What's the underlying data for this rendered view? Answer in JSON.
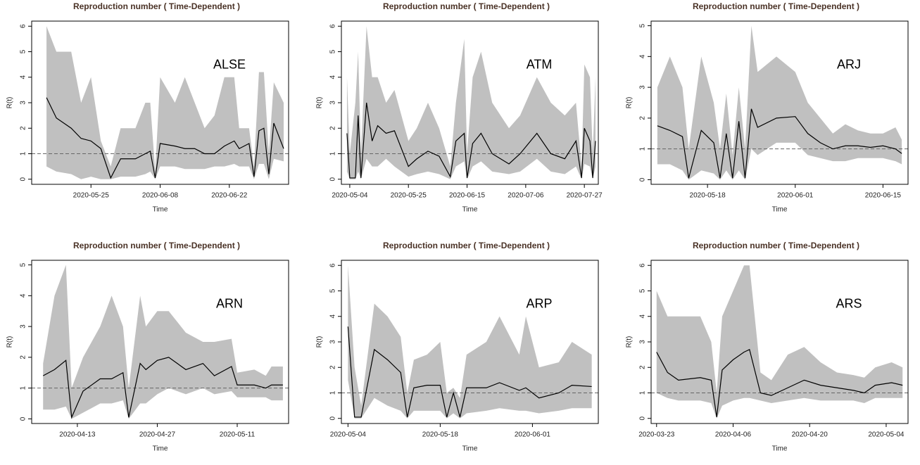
{
  "chart_data": [
    {
      "type": "line",
      "title": "Reproduction number ( Time-Dependent )",
      "annotation": "ALSE",
      "x_label": "Time",
      "y_label": "R(t)",
      "x": [
        "2020-05-16",
        "2020-05-18",
        "2020-05-21",
        "2020-05-23",
        "2020-05-25",
        "2020-05-27",
        "2020-05-29",
        "2020-05-31",
        "2020-06-03",
        "2020-06-05",
        "2020-06-06",
        "2020-06-07",
        "2020-06-08",
        "2020-06-11",
        "2020-06-13",
        "2020-06-15",
        "2020-06-17",
        "2020-06-19",
        "2020-06-21",
        "2020-06-23",
        "2020-06-24",
        "2020-06-26",
        "2020-06-27",
        "2020-06-28",
        "2020-06-29",
        "2020-06-30",
        "2020-07-01",
        "2020-07-03"
      ],
      "values": [
        3.2,
        2.4,
        2.0,
        1.6,
        1.5,
        1.2,
        0.05,
        0.8,
        0.8,
        1.0,
        1.1,
        0.05,
        1.4,
        1.3,
        1.2,
        1.2,
        1.0,
        1.0,
        1.3,
        1.5,
        1.2,
        1.4,
        0.1,
        1.9,
        2.0,
        0.2,
        2.2,
        1.2
      ],
      "lower": [
        0.5,
        0.3,
        0.2,
        0,
        0.1,
        0,
        0,
        0.1,
        0.1,
        0.2,
        0.3,
        0,
        0.5,
        0.5,
        0.4,
        0.4,
        0.4,
        0.5,
        0.5,
        0.6,
        0.5,
        0.5,
        0,
        0.6,
        0.6,
        0,
        0.8,
        0.7
      ],
      "upper": [
        6,
        5,
        5,
        3,
        4,
        1.5,
        0.5,
        2,
        2,
        3,
        3,
        0.3,
        4,
        3,
        4,
        3,
        2,
        2.5,
        4,
        4,
        2,
        2,
        0.5,
        4.2,
        4.2,
        1,
        3.8,
        3
      ],
      "xlim": [
        "2020-05-13",
        "2020-07-04"
      ],
      "xticks": [
        "2020-05-25",
        "2020-06-08",
        "2020-06-22"
      ],
      "ylim": [
        -0.2,
        6.2
      ],
      "yticks": [
        0,
        1,
        2,
        3,
        4,
        5,
        6
      ],
      "reference_line": 1,
      "color": "#000000",
      "band_color": "#c0c0c0"
    },
    {
      "type": "line",
      "title": "Reproduction number ( Time-Dependent )",
      "annotation": "ATM",
      "x_label": "Time",
      "y_label": "R(t)",
      "x": [
        "2020-05-03",
        "2020-05-04",
        "2020-05-06",
        "2020-05-07",
        "2020-05-08",
        "2020-05-10",
        "2020-05-12",
        "2020-05-14",
        "2020-05-17",
        "2020-05-20",
        "2020-05-25",
        "2020-05-28",
        "2020-06-01",
        "2020-06-05",
        "2020-06-09",
        "2020-06-11",
        "2020-06-14",
        "2020-06-15",
        "2020-06-17",
        "2020-06-20",
        "2020-06-24",
        "2020-06-30",
        "2020-07-04",
        "2020-07-10",
        "2020-07-15",
        "2020-07-20",
        "2020-07-24",
        "2020-07-26",
        "2020-07-27",
        "2020-07-29",
        "2020-07-30",
        "2020-07-31"
      ],
      "values": [
        1.8,
        0.05,
        0.05,
        2.5,
        0.05,
        3.0,
        1.5,
        2.1,
        1.8,
        1.9,
        0.5,
        0.8,
        1.1,
        0.9,
        0.1,
        1.5,
        1.8,
        0.05,
        1.4,
        1.8,
        1.0,
        0.6,
        1.0,
        1.8,
        1.0,
        0.8,
        1.5,
        0.05,
        2.0,
        1.5,
        0.05,
        1.5
      ],
      "lower": [
        0.3,
        0,
        0,
        0.3,
        0,
        0.8,
        0.5,
        0.5,
        0.8,
        0.5,
        0.1,
        0.2,
        0.3,
        0.2,
        0,
        0.5,
        0.7,
        0,
        0.5,
        0.7,
        0.3,
        0.2,
        0.3,
        0.8,
        0.3,
        0.2,
        0.5,
        0,
        0.6,
        0.5,
        0,
        0.5
      ],
      "upper": [
        4,
        1,
        3,
        5,
        1,
        6,
        4,
        4,
        3,
        3.5,
        1.5,
        2,
        3,
        2,
        0.5,
        3,
        5.5,
        1,
        4,
        5,
        3,
        2,
        2.5,
        4,
        3,
        2.5,
        3,
        0.5,
        4.5,
        4,
        1,
        4
      ],
      "xlim": [
        "2020-05-01",
        "2020-08-01"
      ],
      "xticks": [
        "2020-05-04",
        "2020-05-25",
        "2020-06-15",
        "2020-07-06",
        "2020-07-27"
      ],
      "ylim": [
        -0.2,
        6.2
      ],
      "yticks": [
        0,
        1,
        2,
        3,
        4,
        5,
        6
      ],
      "reference_line": 1,
      "color": "#000000",
      "band_color": "#c0c0c0"
    },
    {
      "type": "line",
      "title": "Reproduction number ( Time-Dependent )",
      "annotation": "ARJ",
      "x_label": "Time",
      "y_label": "R(t)",
      "x": [
        "2020-05-10",
        "2020-05-12",
        "2020-05-14",
        "2020-05-15",
        "2020-05-17",
        "2020-05-19",
        "2020-05-20",
        "2020-05-21",
        "2020-05-22",
        "2020-05-23",
        "2020-05-24",
        "2020-05-25",
        "2020-05-26",
        "2020-05-29",
        "2020-06-01",
        "2020-06-03",
        "2020-06-05",
        "2020-06-07",
        "2020-06-09",
        "2020-06-11",
        "2020-06-13",
        "2020-06-15",
        "2020-06-17",
        "2020-06-18"
      ],
      "values": [
        1.75,
        1.6,
        1.4,
        0.05,
        1.6,
        1.2,
        0.05,
        1.5,
        0.05,
        1.9,
        0.05,
        2.3,
        1.7,
        2.0,
        2.05,
        1.5,
        1.2,
        1.0,
        1.1,
        1.1,
        1.05,
        1.1,
        1.0,
        0.85
      ],
      "lower": [
        0.5,
        0.5,
        0.3,
        0,
        0.3,
        0.2,
        0,
        0.3,
        0,
        0.3,
        0,
        1.0,
        0.8,
        1.2,
        1.2,
        0.8,
        0.7,
        0.6,
        0.6,
        0.7,
        0.7,
        0.7,
        0.6,
        0.5
      ],
      "upper": [
        3,
        4,
        3,
        1,
        4,
        2.5,
        1,
        2.8,
        0.8,
        3,
        1,
        5,
        3.5,
        4,
        3.5,
        2.5,
        2,
        1.5,
        1.8,
        1.6,
        1.5,
        1.5,
        1.7,
        1.3
      ],
      "xlim": [
        "2020-05-09",
        "2020-06-19"
      ],
      "xticks": [
        "2020-05-18",
        "2020-06-01",
        "2020-06-15"
      ],
      "ylim": [
        -0.15,
        5.15
      ],
      "yticks": [
        0,
        1,
        2,
        3,
        4,
        5
      ],
      "reference_line": 1,
      "color": "#000000",
      "band_color": "#c0c0c0"
    },
    {
      "type": "line",
      "title": "Reproduction number ( Time-Dependent )",
      "annotation": "ARN",
      "x_label": "Time",
      "y_label": "R(t)",
      "x": [
        "2020-04-07",
        "2020-04-09",
        "2020-04-11",
        "2020-04-12",
        "2020-04-14",
        "2020-04-17",
        "2020-04-19",
        "2020-04-21",
        "2020-04-22",
        "2020-04-24",
        "2020-04-25",
        "2020-04-27",
        "2020-04-29",
        "2020-05-02",
        "2020-05-05",
        "2020-05-07",
        "2020-05-10",
        "2020-05-11",
        "2020-05-14",
        "2020-05-16",
        "2020-05-17",
        "2020-05-19"
      ],
      "values": [
        1.4,
        1.6,
        1.9,
        0.05,
        0.9,
        1.3,
        1.3,
        1.5,
        0.05,
        1.8,
        1.6,
        1.9,
        2.0,
        1.6,
        1.8,
        1.4,
        1.7,
        1.1,
        1.1,
        1.0,
        1.1,
        1.1
      ],
      "lower": [
        0.3,
        0.3,
        0.4,
        0,
        0.2,
        0.5,
        0.5,
        0.6,
        0,
        0.5,
        0.5,
        0.8,
        1.0,
        0.8,
        1.0,
        0.8,
        0.9,
        0.7,
        0.7,
        0.7,
        0.6,
        0.6
      ],
      "upper": [
        1.8,
        4,
        5,
        1,
        2,
        3,
        4,
        3,
        1,
        4,
        3,
        3.5,
        3.5,
        2.8,
        2.5,
        2.5,
        2.6,
        1.5,
        1.6,
        1.4,
        1.7,
        1.7
      ],
      "xlim": [
        "2020-04-05",
        "2020-05-20"
      ],
      "xticks": [
        "2020-04-13",
        "2020-04-27",
        "2020-05-11"
      ],
      "ylim": [
        -0.15,
        5.15
      ],
      "yticks": [
        0,
        1,
        2,
        3,
        4,
        5
      ],
      "reference_line": 1,
      "color": "#000000",
      "band_color": "#c0c0c0"
    },
    {
      "type": "line",
      "title": "Reproduction number ( Time-Dependent )",
      "annotation": "ARP",
      "x_label": "Time",
      "y_label": "R(t)",
      "x": [
        "2020-05-04",
        "2020-05-05",
        "2020-05-06",
        "2020-05-08",
        "2020-05-10",
        "2020-05-12",
        "2020-05-13",
        "2020-05-14",
        "2020-05-16",
        "2020-05-18",
        "2020-05-19",
        "2020-05-20",
        "2020-05-21",
        "2020-05-22",
        "2020-05-25",
        "2020-05-27",
        "2020-05-30",
        "2020-05-31",
        "2020-06-02",
        "2020-06-05",
        "2020-06-07",
        "2020-06-10"
      ],
      "values": [
        3.6,
        0.05,
        0.05,
        2.7,
        2.3,
        1.8,
        0.05,
        1.2,
        1.3,
        1.3,
        0.05,
        1.0,
        0.05,
        1.2,
        1.2,
        1.4,
        1.1,
        1.2,
        0.8,
        1.0,
        1.3,
        1.25
      ],
      "lower": [
        1.5,
        0,
        0,
        0.8,
        0.5,
        0.3,
        0,
        0.3,
        0.3,
        0.3,
        0,
        0.2,
        0,
        0.2,
        0.3,
        0.4,
        0.3,
        0.3,
        0.2,
        0.3,
        0.4,
        0.4
      ],
      "upper": [
        6,
        2,
        0.5,
        4.5,
        4,
        3.2,
        1,
        2.3,
        2.5,
        3,
        1,
        1.2,
        0.8,
        2.5,
        3,
        4,
        2.5,
        4,
        2,
        2.2,
        3,
        2.5
      ],
      "xlim": [
        "2020-05-03",
        "2020-06-11"
      ],
      "xticks": [
        "2020-05-04",
        "2020-05-18",
        "2020-06-01"
      ],
      "ylim": [
        -0.2,
        6.2
      ],
      "yticks": [
        0,
        1,
        2,
        3,
        4,
        5,
        6
      ],
      "reference_line": 1,
      "color": "#000000",
      "band_color": "#c0c0c0"
    },
    {
      "type": "line",
      "title": "Reproduction number ( Time-Dependent )",
      "annotation": "ARS",
      "x_label": "Time",
      "y_label": "R(t)",
      "x": [
        "2020-03-23",
        "2020-03-25",
        "2020-03-27",
        "2020-03-31",
        "2020-04-02",
        "2020-04-03",
        "2020-04-04",
        "2020-04-06",
        "2020-04-08",
        "2020-04-09",
        "2020-04-11",
        "2020-04-13",
        "2020-04-16",
        "2020-04-19",
        "2020-04-22",
        "2020-04-25",
        "2020-04-28",
        "2020-04-30",
        "2020-05-02",
        "2020-05-05",
        "2020-05-07"
      ],
      "values": [
        2.6,
        1.8,
        1.5,
        1.6,
        1.5,
        0.05,
        1.9,
        2.3,
        2.6,
        2.7,
        1.0,
        0.9,
        1.2,
        1.5,
        1.3,
        1.2,
        1.1,
        1.0,
        1.3,
        1.4,
        1.3
      ],
      "lower": [
        1.0,
        0.8,
        0.7,
        0.7,
        0.6,
        0,
        0.5,
        0.7,
        0.8,
        0.8,
        0.7,
        0.6,
        0.7,
        0.8,
        0.7,
        0.7,
        0.7,
        0.6,
        0.8,
        0.8,
        0.8
      ],
      "upper": [
        5,
        4,
        4,
        4,
        3,
        1,
        4,
        5,
        6,
        6,
        1.8,
        1.5,
        2.5,
        2.8,
        2.2,
        1.8,
        1.7,
        1.6,
        2,
        2.2,
        2
      ],
      "xlim": [
        "2020-03-22",
        "2020-05-08"
      ],
      "xticks": [
        "2020-03-23",
        "2020-04-06",
        "2020-04-20",
        "2020-05-04"
      ],
      "ylim": [
        -0.2,
        6.2
      ],
      "yticks": [
        0,
        1,
        2,
        3,
        4,
        5,
        6
      ],
      "reference_line": 1,
      "color": "#000000",
      "band_color": "#c0c0c0"
    }
  ]
}
